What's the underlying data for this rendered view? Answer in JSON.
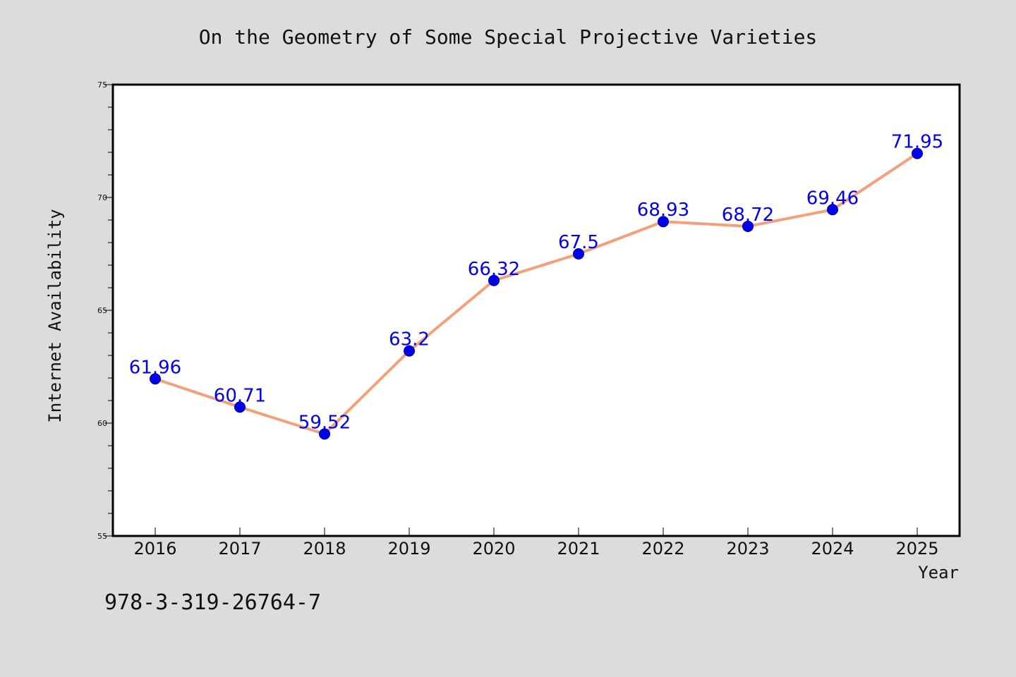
{
  "chart_data": {
    "type": "line",
    "title": "On the Geometry of Some Special Projective Varieties",
    "xlabel": "Year",
    "ylabel": "Internet Availability",
    "x": [
      "2016",
      "2017",
      "2018",
      "2019",
      "2020",
      "2021",
      "2022",
      "2023",
      "2024",
      "2025"
    ],
    "series": [
      {
        "values": [
          61.96,
          60.71,
          59.52,
          63.2,
          66.32,
          67.5,
          68.93,
          68.72,
          69.46,
          71.95
        ]
      }
    ],
    "data_labels": [
      "61.96",
      "60.71",
      "59.52",
      "63.2",
      "66.32",
      "67.5",
      "68.93",
      "68.72",
      "69.46",
      "71.95"
    ],
    "ylim": [
      55,
      75
    ],
    "y_ticks": [
      "55",
      "60",
      "65",
      "70",
      "75"
    ],
    "grid": false,
    "colors": {
      "line": "#f4a07a",
      "marker": "#0000ee",
      "label": "#0000ee",
      "background": "#dcdcdc",
      "plot_bg": "#ffffff"
    }
  },
  "footer_text": "978-3-319-26764-7"
}
